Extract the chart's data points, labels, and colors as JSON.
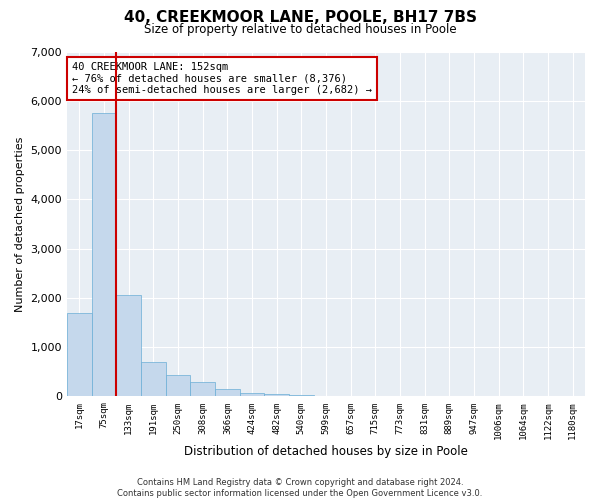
{
  "title": "40, CREEKMOOR LANE, POOLE, BH17 7BS",
  "subtitle": "Size of property relative to detached houses in Poole",
  "xlabel": "Distribution of detached houses by size in Poole",
  "ylabel": "Number of detached properties",
  "annotation_text": "40 CREEKMOOR LANE: 152sqm\n← 76% of detached houses are smaller (8,376)\n24% of semi-detached houses are larger (2,682) →",
  "bin_labels": [
    "17sqm",
    "75sqm",
    "133sqm",
    "191sqm",
    "250sqm",
    "308sqm",
    "366sqm",
    "424sqm",
    "482sqm",
    "540sqm",
    "599sqm",
    "657sqm",
    "715sqm",
    "773sqm",
    "831sqm",
    "889sqm",
    "947sqm",
    "1006sqm",
    "1064sqm",
    "1122sqm",
    "1180sqm"
  ],
  "counts": [
    1700,
    5750,
    2050,
    700,
    430,
    290,
    150,
    80,
    55,
    30,
    0,
    0,
    0,
    0,
    0,
    0,
    0,
    0,
    0,
    0,
    0
  ],
  "bar_color": "#c5d8ec",
  "bar_edge_color": "#6aaed6",
  "vline_color": "#cc0000",
  "annotation_box_color": "#ffffff",
  "annotation_box_edge": "#cc0000",
  "ylim": [
    0,
    7000
  ],
  "yticks": [
    0,
    1000,
    2000,
    3000,
    4000,
    5000,
    6000,
    7000
  ],
  "bg_color": "#e8eef4",
  "footer1": "Contains HM Land Registry data © Crown copyright and database right 2024.",
  "footer2": "Contains public sector information licensed under the Open Government Licence v3.0."
}
